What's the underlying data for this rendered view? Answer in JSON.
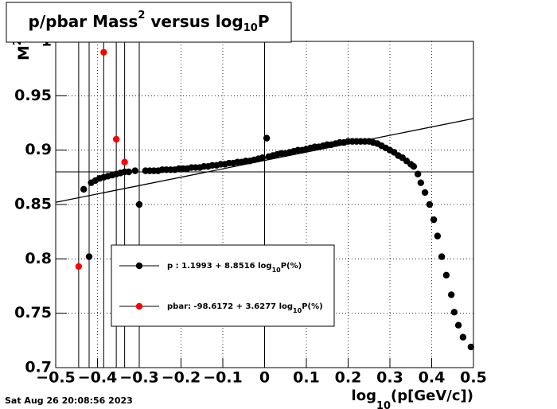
{
  "chart_data": {
    "type": "scatter",
    "title": {
      "main": "p/pbar Mass",
      "sup": "2",
      "mid": " versus log",
      "sub": "10",
      "tail": "P"
    },
    "xlabel": {
      "main": "log",
      "sub": "10",
      "tail": "(p[GeV/c])"
    },
    "ylabel": {
      "main": "M",
      "sup": "2"
    },
    "timestamp": "Sat Aug 26 20:08:56 2023",
    "xlim": [
      -0.5,
      0.5
    ],
    "ylim": [
      0.7,
      1.0
    ],
    "xticks": [
      {
        "value": -0.5,
        "label": "−0.5"
      },
      {
        "value": -0.4,
        "label": "−0.4"
      },
      {
        "value": -0.3,
        "label": "−0.3"
      },
      {
        "value": -0.2,
        "label": "−0.2"
      },
      {
        "value": -0.1,
        "label": "−0.1"
      },
      0,
      0.1,
      0.2,
      0.3,
      0.4,
      0.5
    ],
    "yticks": [
      0.7,
      0.75,
      0.8,
      0.85,
      0.9,
      0.95,
      1
    ],
    "grid": true,
    "fit_line": {
      "x": [
        -0.5,
        0.5
      ],
      "y": [
        0.852,
        0.929
      ]
    },
    "hline": 0.88,
    "vlines": [
      -0.445,
      -0.42,
      -0.385,
      -0.355,
      -0.335,
      -0.3,
      0
    ],
    "series": [
      {
        "name": "p  : 1.1993 + 8.8516 log",
        "name_sub": "10",
        "name_tail": "P(%)",
        "color": "#000000",
        "x": [
          -0.433,
          -0.42,
          -0.415,
          -0.405,
          -0.395,
          -0.385,
          -0.375,
          -0.365,
          -0.355,
          -0.345,
          -0.335,
          -0.325,
          -0.31,
          -0.3,
          -0.285,
          -0.275,
          -0.265,
          -0.255,
          -0.245,
          -0.235,
          -0.225,
          -0.215,
          -0.205,
          -0.195,
          -0.185,
          -0.175,
          -0.165,
          -0.155,
          -0.145,
          -0.135,
          -0.125,
          -0.115,
          -0.105,
          -0.095,
          -0.085,
          -0.075,
          -0.065,
          -0.055,
          -0.045,
          -0.035,
          -0.025,
          -0.015,
          -0.005,
          0.005,
          0.01,
          0.02,
          0.03,
          0.04,
          0.05,
          0.06,
          0.07,
          0.08,
          0.09,
          0.1,
          0.11,
          0.12,
          0.13,
          0.14,
          0.15,
          0.16,
          0.17,
          0.18,
          0.19,
          0.2,
          0.21,
          0.22,
          0.23,
          0.24,
          0.25,
          0.26,
          0.27,
          0.28,
          0.29,
          0.3,
          0.31,
          0.32,
          0.33,
          0.34,
          0.35,
          0.357,
          0.367,
          0.374,
          0.384,
          0.395,
          0.405,
          0.414,
          0.424,
          0.435,
          0.447,
          0.454,
          0.464,
          0.475,
          0.494
        ],
        "values": [
          0.864,
          0.802,
          0.87,
          0.872,
          0.874,
          0.875,
          0.876,
          0.877,
          0.878,
          0.879,
          0.88,
          0.88,
          0.881,
          0.85,
          0.881,
          0.881,
          0.881,
          0.881,
          0.882,
          0.882,
          0.882,
          0.882,
          0.883,
          0.883,
          0.883,
          0.884,
          0.884,
          0.884,
          0.885,
          0.885,
          0.886,
          0.886,
          0.887,
          0.887,
          0.888,
          0.888,
          0.889,
          0.889,
          0.89,
          0.89,
          0.891,
          0.892,
          0.893,
          0.911,
          0.894,
          0.895,
          0.896,
          0.897,
          0.897,
          0.898,
          0.899,
          0.9,
          0.9,
          0.901,
          0.902,
          0.903,
          0.903,
          0.904,
          0.905,
          0.905,
          0.906,
          0.907,
          0.907,
          0.908,
          0.908,
          0.908,
          0.908,
          0.908,
          0.908,
          0.907,
          0.906,
          0.904,
          0.902,
          0.9,
          0.898,
          0.895,
          0.893,
          0.89,
          0.887,
          0.885,
          0.878,
          0.87,
          0.861,
          0.85,
          0.836,
          0.821,
          0.802,
          0.785,
          0.767,
          0.751,
          0.739,
          0.728,
          0.719
        ]
      },
      {
        "name": "pbar: -98.6172 + 3.6277 log",
        "name_sub": "10",
        "name_tail": "P(%)",
        "color": "#ff0000",
        "x": [
          -0.445,
          -0.385,
          -0.355,
          -0.335
        ],
        "values": [
          0.793,
          0.99,
          0.91,
          0.889
        ]
      }
    ]
  }
}
